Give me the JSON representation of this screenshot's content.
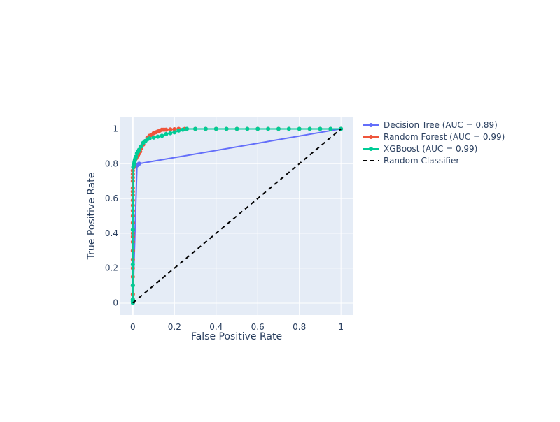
{
  "chart_data": {
    "type": "line",
    "title": "",
    "xlabel": "False Positive Rate",
    "ylabel": "True Positive Rate",
    "xlim": [
      -0.06,
      1.06
    ],
    "ylim": [
      -0.07,
      1.07
    ],
    "x_ticks": [
      0,
      0.2,
      0.4,
      0.6,
      0.8,
      1
    ],
    "x_tick_labels": [
      "0",
      "0.2",
      "0.4",
      "0.6",
      "0.8",
      "1"
    ],
    "y_ticks": [
      0,
      0.2,
      0.4,
      0.6,
      0.8,
      1
    ],
    "y_tick_labels": [
      "0",
      "0.2",
      "0.4",
      "0.6",
      "0.8",
      "1"
    ],
    "grid": true,
    "legend_position": "right",
    "series": [
      {
        "name": "Decision Tree (AUC = 0.89)",
        "color": "#636efa",
        "mode": "lines+markers",
        "x": [
          0,
          0.02,
          0.03,
          1
        ],
        "y": [
          0,
          0.79,
          0.8,
          1
        ]
      },
      {
        "name": "Random Forest (AUC = 0.99)",
        "color": "#ef553b",
        "mode": "lines+markers",
        "x": [
          0,
          0,
          0,
          0,
          0,
          0,
          0,
          0,
          0,
          0,
          0,
          0,
          0,
          0,
          0,
          0,
          0,
          0,
          0,
          0,
          0,
          0,
          0,
          0,
          0.005,
          0.008,
          0.01,
          0.015,
          0.02,
          0.025,
          0.03,
          0.035,
          0.04,
          0.05,
          0.06,
          0.07,
          0.08,
          0.09,
          0.1,
          0.11,
          0.12,
          0.13,
          0.14,
          0.15,
          0.16,
          0.18,
          0.2,
          0.22,
          0.25,
          0.3,
          0.35,
          0.4,
          0.45,
          0.5,
          0.55,
          0.6,
          0.65,
          0.7,
          0.75,
          0.8,
          0.85,
          0.9,
          0.95,
          1
        ],
        "y": [
          0,
          0.02,
          0.05,
          0.1,
          0.15,
          0.2,
          0.25,
          0.3,
          0.35,
          0.38,
          0.4,
          0.42,
          0.46,
          0.5,
          0.53,
          0.56,
          0.59,
          0.62,
          0.64,
          0.66,
          0.7,
          0.72,
          0.74,
          0.76,
          0.78,
          0.8,
          0.82,
          0.83,
          0.84,
          0.85,
          0.86,
          0.87,
          0.89,
          0.91,
          0.93,
          0.95,
          0.96,
          0.965,
          0.975,
          0.98,
          0.985,
          0.99,
          0.995,
          0.995,
          0.995,
          0.997,
          0.998,
          1,
          1,
          1,
          1,
          1,
          1,
          1,
          1,
          1,
          1,
          1,
          1,
          1,
          1,
          1,
          1,
          1
        ]
      },
      {
        "name": "XGBoost (AUC = 0.99)",
        "color": "#00cc96",
        "mode": "lines+markers",
        "x": [
          0,
          0,
          0,
          0,
          0,
          0,
          0.002,
          0.004,
          0.006,
          0.008,
          0.01,
          0.012,
          0.015,
          0.02,
          0.025,
          0.03,
          0.04,
          0.05,
          0.06,
          0.07,
          0.08,
          0.1,
          0.12,
          0.14,
          0.16,
          0.18,
          0.2,
          0.22,
          0.24,
          0.26,
          0.3,
          0.35,
          0.4,
          0.45,
          0.5,
          0.55,
          0.6,
          0.65,
          0.7,
          0.75,
          0.8,
          0.85,
          0.9,
          0.95,
          1
        ],
        "y": [
          0,
          0.01,
          0.02,
          0.1,
          0.22,
          0.42,
          0.78,
          0.79,
          0.8,
          0.81,
          0.82,
          0.83,
          0.84,
          0.86,
          0.87,
          0.88,
          0.9,
          0.92,
          0.93,
          0.94,
          0.945,
          0.95,
          0.955,
          0.96,
          0.97,
          0.975,
          0.98,
          0.99,
          0.995,
          1,
          1,
          1,
          1,
          1,
          1,
          1,
          1,
          1,
          1,
          1,
          1,
          1,
          1,
          1,
          1
        ]
      },
      {
        "name": "Random Classifier",
        "color": "#000000",
        "mode": "lines",
        "dash": "dash",
        "x": [
          0,
          1
        ],
        "y": [
          0,
          1
        ]
      }
    ]
  }
}
